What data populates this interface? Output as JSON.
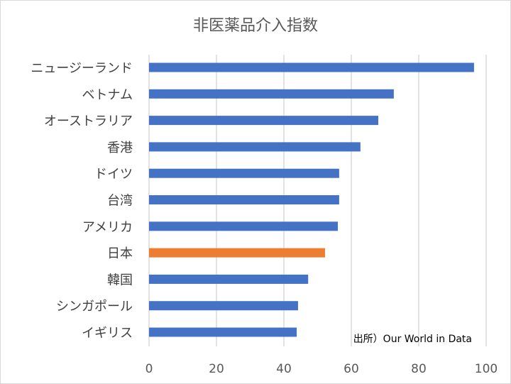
{
  "chart_data": {
    "type": "bar",
    "orientation": "horizontal",
    "title": "非医薬品介入指数",
    "categories": [
      "ニュージーランド",
      "ベトナム",
      "オーストラリア",
      "香港",
      "ドイツ",
      "台湾",
      "アメリカ",
      "日本",
      "韓国",
      "シンガポール",
      "イギリス"
    ],
    "values": [
      96.4,
      72.6,
      68.0,
      62.7,
      56.4,
      56.4,
      56.0,
      52.2,
      47.2,
      44.2,
      43.8
    ],
    "highlight": "日本",
    "colors": {
      "default": "#4472c4",
      "highlight": "#ed7d31",
      "grid": "#d9d9d9"
    },
    "xlim": [
      0,
      100
    ],
    "xticks": [
      0,
      20,
      40,
      60,
      80,
      100
    ],
    "grid": true,
    "xlabel": "",
    "ylabel": "",
    "annotation": "出所）Our World in Data"
  }
}
